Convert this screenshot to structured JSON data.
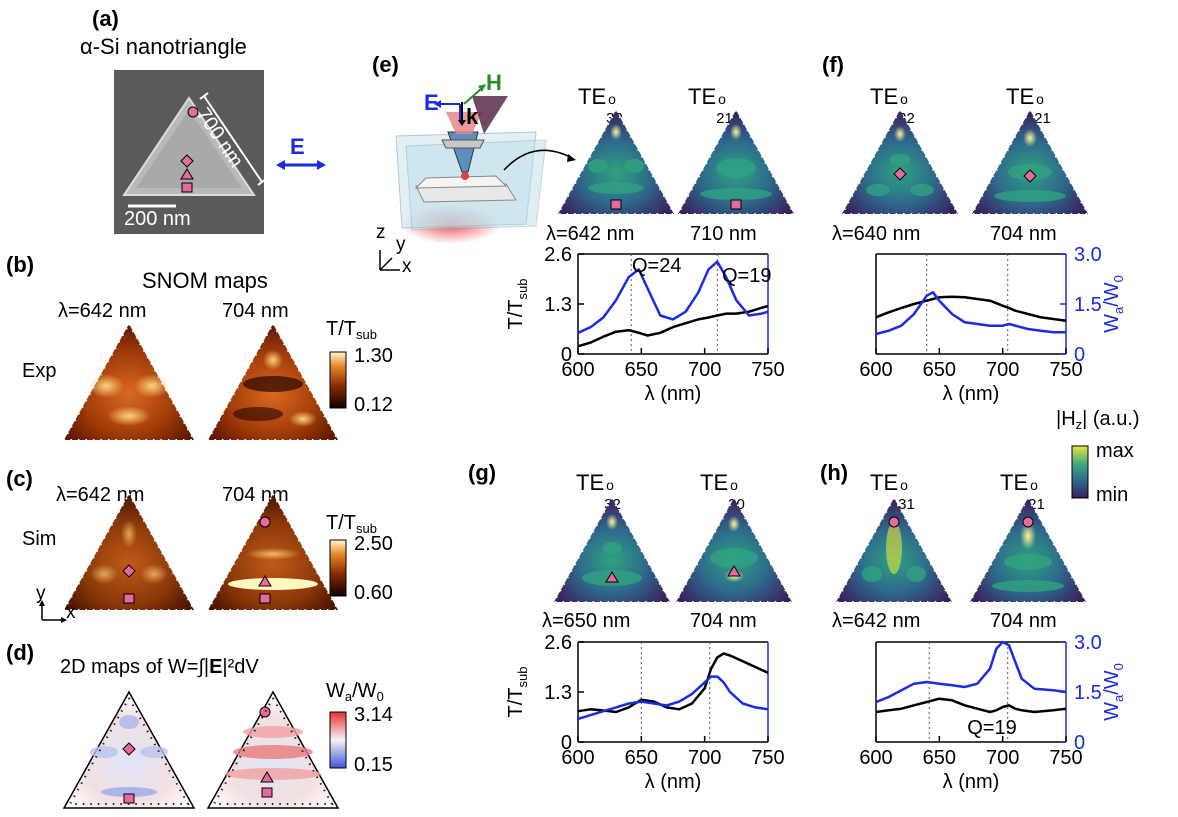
{
  "panels": {
    "a": {
      "label": "(a)",
      "title": "α-Si nanotriangle",
      "size_label": "700 nm",
      "scale_label": "200 nm",
      "field_label": "E"
    },
    "b": {
      "label": "(b)",
      "title": "SNOM maps",
      "wl1": "λ=642 nm",
      "wl2": "704 nm",
      "row_label": "Exp",
      "cbar_title": "T/T",
      "cbar_sub": "sub",
      "cbar_max": "1.30",
      "cbar_min": "0.12"
    },
    "c": {
      "label": "(c)",
      "wl1": "λ=642 nm",
      "wl2": "704 nm",
      "row_label": "Sim",
      "cbar_title": "T/T",
      "cbar_sub": "sub",
      "cbar_max": "2.50",
      "cbar_min": "0.60",
      "axis_y": "y",
      "axis_x": "x"
    },
    "d": {
      "label": "(d)",
      "title_pre": "2D maps of W=∫|",
      "title_bold": "E",
      "title_post": "|²dV",
      "cbar_title": "W",
      "cbar_sub_a": "a",
      "cbar_mid": "/W",
      "cbar_sub_0": "0",
      "cbar_max": "3.14",
      "cbar_min": "0.15"
    },
    "e": {
      "label": "(e)",
      "mode1_base": "TE",
      "mode1_sup": "o",
      "mode1_sub": "32",
      "mode2_base": "TE",
      "mode2_sup": "o",
      "mode2_sub": "21",
      "wl1": "λ=642 nm",
      "wl2": "710 nm",
      "q1": "Q=24",
      "q2": "Q=19",
      "beam_E": "E",
      "beam_H": "H",
      "beam_k": "k",
      "axis_z": "z",
      "axis_y": "y",
      "axis_x": "x"
    },
    "f": {
      "label": "(f)",
      "mode1_base": "TE",
      "mode1_sup": "o",
      "mode1_sub": "32",
      "mode2_base": "TE",
      "mode2_sup": "o",
      "mode2_sub": "21",
      "wl1": "λ=640 nm",
      "wl2": "704 nm"
    },
    "g": {
      "label": "(g)",
      "mode1_base": "TE",
      "mode1_sup": "o",
      "mode1_sub": "32",
      "mode2_base": "TE",
      "mode2_sup": "o",
      "mode2_sub": "30",
      "wl1": "λ=650 nm",
      "wl2": "704 nm"
    },
    "h": {
      "label": "(h)",
      "mode1_base": "TE",
      "mode1_sup": "o",
      "mode1_sub": "31",
      "mode2_base": "TE",
      "mode2_sup": "o",
      "mode2_sub": "21",
      "wl1": "λ=642 nm",
      "wl2": "704 nm",
      "q1": "Q=19"
    }
  },
  "hz_colorbar": {
    "title": "|H",
    "title_sub": "z",
    "title_post": "| (a.u.)",
    "max": "max",
    "min": "min"
  },
  "axes_text": {
    "x_label": "λ (nm)",
    "y_left_base": "T/T",
    "y_left_sub": "sub",
    "y_right_base": "W",
    "y_right_sub_a": "a",
    "y_right_mid": "/W",
    "y_right_sub_0": "0"
  },
  "chart_data": [
    {
      "type": "line",
      "panel": "e",
      "x": [
        600,
        610,
        620,
        630,
        640,
        648,
        655,
        665,
        675,
        685,
        695,
        703,
        710,
        717,
        725,
        735,
        745,
        750
      ],
      "xlim": [
        600,
        750
      ],
      "x_ticks": [
        "600",
        "650",
        "700",
        "750"
      ],
      "ylim_left": [
        0,
        2.6
      ],
      "y_ticks_left": [
        "0",
        "1.3",
        "2.6"
      ],
      "ylim_right": null,
      "series": [
        {
          "axis": "left",
          "color": "#000000",
          "values": [
            0.2,
            0.3,
            0.45,
            0.58,
            0.62,
            0.55,
            0.48,
            0.55,
            0.7,
            0.8,
            0.9,
            0.95,
            1.0,
            1.05,
            1.05,
            1.1,
            1.2,
            1.25
          ]
        },
        {
          "axis": "left",
          "color": "#1a2be0",
          "values": [
            0.55,
            0.7,
            0.95,
            1.4,
            2.0,
            2.2,
            1.7,
            1.0,
            0.9,
            1.1,
            1.6,
            2.2,
            2.4,
            2.0,
            1.4,
            1.0,
            1.05,
            1.1
          ]
        }
      ],
      "vlines": [
        642,
        710
      ]
    },
    {
      "type": "line",
      "panel": "f",
      "x": [
        600,
        610,
        620,
        630,
        640,
        645,
        650,
        660,
        670,
        680,
        690,
        700,
        705,
        710,
        720,
        730,
        740,
        750
      ],
      "xlim": [
        600,
        750
      ],
      "x_ticks": [
        "600",
        "650",
        "700",
        "750"
      ],
      "ylim_right": [
        0,
        3.0
      ],
      "y_ticks_right": [
        "0",
        "1.5",
        "3.0"
      ],
      "series": [
        {
          "axis": "right",
          "color": "#000000",
          "values": [
            1.1,
            1.25,
            1.38,
            1.5,
            1.6,
            1.65,
            1.7,
            1.72,
            1.7,
            1.65,
            1.6,
            1.45,
            1.38,
            1.3,
            1.2,
            1.1,
            1.05,
            1.0
          ]
        },
        {
          "axis": "right",
          "color": "#1a2be0",
          "values": [
            0.6,
            0.7,
            0.85,
            1.2,
            1.75,
            1.85,
            1.6,
            1.2,
            0.95,
            0.9,
            0.85,
            0.85,
            0.9,
            0.85,
            0.75,
            0.7,
            0.65,
            0.65
          ]
        }
      ],
      "vlines": [
        640,
        704
      ]
    },
    {
      "type": "line",
      "panel": "g",
      "x": [
        600,
        610,
        620,
        630,
        640,
        650,
        660,
        670,
        680,
        690,
        700,
        705,
        710,
        715,
        720,
        730,
        740,
        750
      ],
      "xlim": [
        600,
        750
      ],
      "x_ticks": [
        "600",
        "650",
        "700",
        "750"
      ],
      "ylim_left": [
        0,
        2.6
      ],
      "y_ticks_left": [
        "0",
        "1.3",
        "2.6"
      ],
      "series": [
        {
          "axis": "left",
          "color": "#000000",
          "values": [
            0.8,
            0.85,
            0.82,
            0.78,
            0.9,
            1.1,
            1.05,
            0.9,
            0.85,
            1.0,
            1.4,
            1.9,
            2.2,
            2.3,
            2.25,
            2.1,
            1.95,
            1.8
          ]
        },
        {
          "axis": "left",
          "color": "#1a2be0",
          "values": [
            0.6,
            0.7,
            0.8,
            0.9,
            1.0,
            1.05,
            1.0,
            0.95,
            1.05,
            1.25,
            1.55,
            1.7,
            1.7,
            1.55,
            1.3,
            1.0,
            0.9,
            0.85
          ]
        }
      ],
      "vlines": [
        650,
        704
      ]
    },
    {
      "type": "line",
      "panel": "h",
      "x": [
        600,
        610,
        620,
        630,
        640,
        650,
        660,
        670,
        680,
        690,
        695,
        700,
        705,
        710,
        715,
        725,
        740,
        750
      ],
      "xlim": [
        600,
        750
      ],
      "x_ticks": [
        "600",
        "650",
        "700",
        "750"
      ],
      "ylim_right": [
        0,
        3.0
      ],
      "y_ticks_right": [
        "0",
        "1.5",
        "3.0"
      ],
      "series": [
        {
          "axis": "right",
          "color": "#000000",
          "values": [
            0.9,
            0.95,
            1.0,
            1.1,
            1.2,
            1.3,
            1.25,
            1.1,
            1.0,
            0.9,
            0.95,
            1.05,
            1.1,
            1.0,
            0.95,
            0.9,
            0.95,
            1.0
          ]
        },
        {
          "axis": "right",
          "color": "#1a2be0",
          "values": [
            1.2,
            1.35,
            1.55,
            1.75,
            1.8,
            1.75,
            1.7,
            1.65,
            1.75,
            2.2,
            2.8,
            3.0,
            2.9,
            2.4,
            1.9,
            1.6,
            1.55,
            1.5
          ]
        }
      ],
      "vlines": [
        642,
        704
      ]
    }
  ]
}
